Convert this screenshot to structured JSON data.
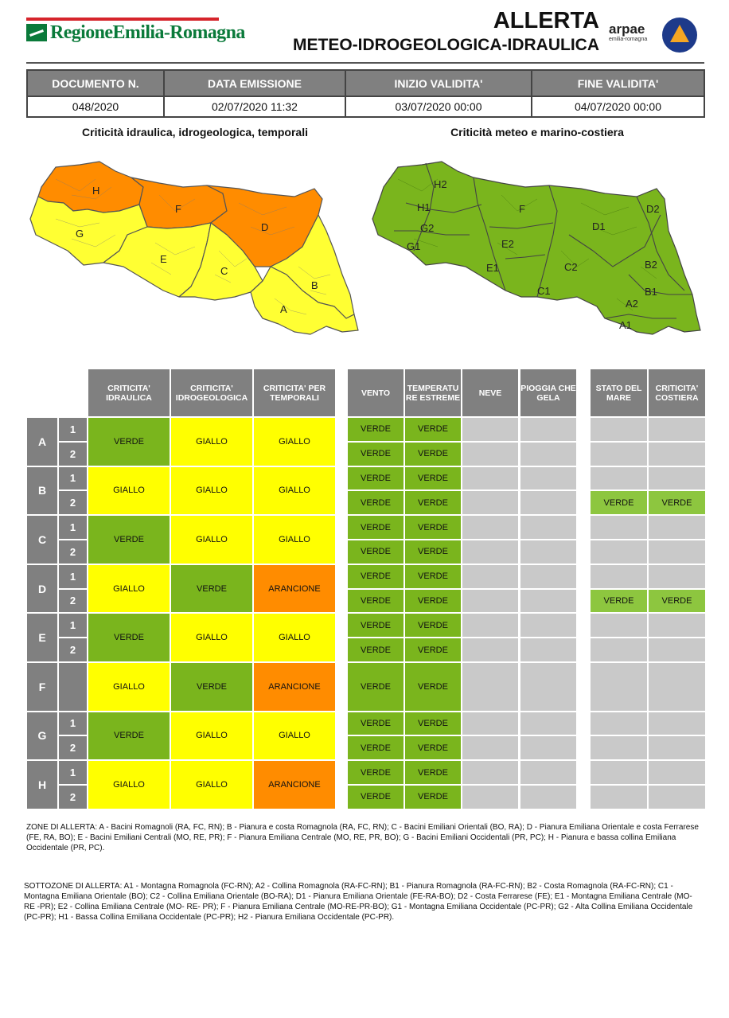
{
  "header": {
    "region_logo": "RegioneEmilia-Romagna",
    "title": "ALLERTA",
    "subtitle": "METEO-IDROGEOLOGICA-IDRAULICA",
    "arpae_logo": "arpae",
    "arpae_sub": "emilia-romagna",
    "protezione_civile_icon": "civil-protection-logo"
  },
  "doc_table": {
    "headers": [
      "DOCUMENTO N.",
      "DATA EMISSIONE",
      "INIZIO VALIDITA'",
      "FINE VALIDITA'"
    ],
    "values": [
      "048/2020",
      "02/07/2020 11:32",
      "03/07/2020 00:00",
      "04/07/2020 00:00"
    ]
  },
  "maps": {
    "left_title": "Criticità idraulica, idrogeologica, temporali",
    "right_title": "Criticità meteo e marino-costiera",
    "left_labels": [
      "H",
      "F",
      "D",
      "G",
      "E",
      "C",
      "B",
      "A"
    ],
    "right_labels": [
      "H2",
      "H1",
      "G2",
      "G1",
      "F",
      "E2",
      "E1",
      "C1",
      "C2",
      "D1",
      "D2",
      "B2",
      "B1",
      "A2",
      "A1"
    ],
    "colors": {
      "verde": "#7ab51d",
      "giallo": "#ffff00",
      "arancione": "#ff8c00"
    }
  },
  "grid": {
    "crit_headers": [
      "CRITICITA' IDRAULICA",
      "CRITICITA' IDROGEOLOGICA",
      "CRITICITA' PER TEMPORALI"
    ],
    "meteo_headers": [
      "VENTO",
      "TEMPERATU RE ESTREME",
      "NEVE",
      "PIOGGIA CHE GELA"
    ],
    "mare_headers": [
      "STATO DEL MARE",
      "CRITICITA' COSTIERA"
    ],
    "zones": [
      {
        "zone": "A",
        "subs": [
          "1",
          "2"
        ],
        "crit": [
          "VERDE",
          "GIALLO",
          "GIALLO"
        ],
        "meteo": [
          [
            "VERDE",
            "VERDE"
          ],
          [
            "VERDE",
            "VERDE"
          ]
        ],
        "mare": [
          [
            "",
            ""
          ],
          [
            "",
            ""
          ]
        ]
      },
      {
        "zone": "B",
        "subs": [
          "1",
          "2"
        ],
        "crit": [
          "GIALLO",
          "GIALLO",
          "GIALLO"
        ],
        "meteo": [
          [
            "VERDE",
            "VERDE"
          ],
          [
            "VERDE",
            "VERDE"
          ]
        ],
        "mare": [
          [
            "",
            ""
          ],
          [
            "VERDE",
            "VERDE"
          ]
        ]
      },
      {
        "zone": "C",
        "subs": [
          "1",
          "2"
        ],
        "crit": [
          "VERDE",
          "GIALLO",
          "GIALLO"
        ],
        "meteo": [
          [
            "VERDE",
            "VERDE"
          ],
          [
            "VERDE",
            "VERDE"
          ]
        ],
        "mare": [
          [
            "",
            ""
          ],
          [
            "",
            ""
          ]
        ]
      },
      {
        "zone": "D",
        "subs": [
          "1",
          "2"
        ],
        "crit": [
          "GIALLO",
          "VERDE",
          "ARANCIONE"
        ],
        "meteo": [
          [
            "VERDE",
            "VERDE"
          ],
          [
            "VERDE",
            "VERDE"
          ]
        ],
        "mare": [
          [
            "",
            ""
          ],
          [
            "VERDE",
            "VERDE"
          ]
        ]
      },
      {
        "zone": "E",
        "subs": [
          "1",
          "2"
        ],
        "crit": [
          "VERDE",
          "GIALLO",
          "GIALLO"
        ],
        "meteo": [
          [
            "VERDE",
            "VERDE"
          ],
          [
            "VERDE",
            "VERDE"
          ]
        ],
        "mare": [
          [
            "",
            ""
          ],
          [
            "",
            ""
          ]
        ]
      },
      {
        "zone": "F",
        "subs": [],
        "crit": [
          "GIALLO",
          "VERDE",
          "ARANCIONE"
        ],
        "meteo": [
          [
            "VERDE",
            "VERDE"
          ]
        ],
        "mare": [
          [
            "",
            ""
          ]
        ]
      },
      {
        "zone": "G",
        "subs": [
          "1",
          "2"
        ],
        "crit": [
          "VERDE",
          "GIALLO",
          "GIALLO"
        ],
        "meteo": [
          [
            "VERDE",
            "VERDE"
          ],
          [
            "VERDE",
            "VERDE"
          ]
        ],
        "mare": [
          [
            "",
            ""
          ],
          [
            "",
            ""
          ]
        ]
      },
      {
        "zone": "H",
        "subs": [
          "1",
          "2"
        ],
        "crit": [
          "GIALLO",
          "GIALLO",
          "ARANCIONE"
        ],
        "meteo": [
          [
            "VERDE",
            "VERDE"
          ],
          [
            "VERDE",
            "VERDE"
          ]
        ],
        "mare": [
          [
            "",
            ""
          ],
          [
            "",
            ""
          ]
        ]
      }
    ]
  },
  "legend": {
    "zone": "ZONE DI ALLERTA: A - Bacini Romagnoli (RA, FC, RN); B - Pianura e costa Romagnola (RA, FC, RN); C - Bacini Emiliani Orientali (BO, RA); D - Pianura Emiliana Orientale e costa Ferrarese (FE, RA, BO); E - Bacini Emiliani Centrali (MO, RE, PR); F - Pianura Emiliana Centrale (MO, RE, PR, BO); G - Bacini Emiliani Occidentali (PR, PC); H - Pianura e bassa collina Emiliana Occidentale (PR, PC).",
    "sottozone": "SOTTOZONE DI ALLERTA: A1 - Montagna Romagnola (FC-RN); A2 - Collina Romagnola (RA-FC-RN); B1 - Pianura Romagnola (RA-FC-RN); B2 - Costa Romagnola (RA-FC-RN); C1 - Montagna Emiliana Orientale (BO); C2 - Collina Emiliana Orientale (BO-RA); D1 - Pianura Emiliana Orientale (FE-RA-BO); D2 - Costa Ferrarese (FE); E1 - Montagna Emiliana Centrale (MO- RE -PR); E2 - Collina Emiliana Centrale (MO- RE- PR); F - Pianura Emiliana Centrale (MO-RE-PR-BO); G1 - Montagna Emiliana Occidentale (PC-PR); G2 - Alta Collina Emiliana Occidentale (PC-PR); H1 - Bassa Collina Emiliana Occidentale (PC-PR); H2 - Pianura Emiliana Occidentale (PC-PR)."
  }
}
